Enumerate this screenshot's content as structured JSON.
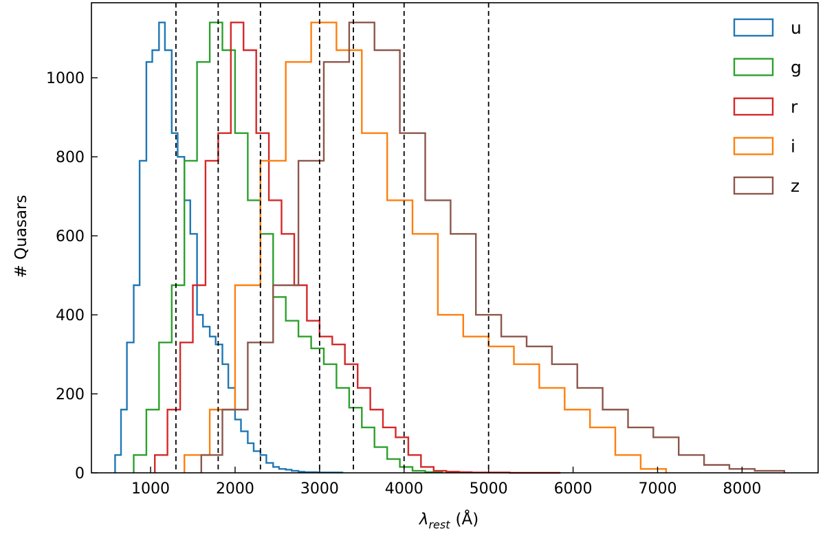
{
  "chart_data": {
    "type": "histogram",
    "xlabel": "λrest (Å)",
    "xlabel_parts": {
      "symbol": "λ",
      "subscript": "rest",
      "unit": "(Å)"
    },
    "ylabel": "# Quasars",
    "xlim": [
      300,
      8900
    ],
    "ylim": [
      0,
      1190
    ],
    "xticks": [
      1000,
      2000,
      3000,
      4000,
      5000,
      6000,
      7000,
      8000
    ],
    "yticks": [
      0,
      200,
      400,
      600,
      800,
      1000
    ],
    "grid": false,
    "legend_position": "top-right",
    "step_style": "stepped outline",
    "reference_lines": {
      "style": "dashed",
      "color": "#000000",
      "x": [
        1300,
        1800,
        2300,
        3000,
        3400,
        4000,
        5000
      ]
    },
    "series": [
      {
        "name": "u",
        "color": "#1f77b4",
        "edges": [
          580,
          650,
          720,
          800,
          870,
          950,
          1020,
          1100,
          1170,
          1250,
          1320,
          1400,
          1470,
          1550,
          1620,
          1700,
          1770,
          1850,
          1920,
          2000,
          2070,
          2150,
          2220,
          2300,
          2370,
          2450,
          2520,
          2600,
          2670,
          2750,
          2820,
          2900,
          2970,
          3050,
          3120,
          3200,
          3270
        ],
        "counts": [
          45,
          160,
          330,
          475,
          790,
          1040,
          1070,
          1140,
          1070,
          860,
          800,
          690,
          605,
          400,
          370,
          345,
          325,
          275,
          215,
          135,
          105,
          75,
          55,
          45,
          25,
          15,
          10,
          8,
          5,
          3,
          2,
          2,
          1,
          1,
          1,
          1
        ]
      },
      {
        "name": "g",
        "color": "#2ca02c",
        "edges": [
          800,
          950,
          1100,
          1250,
          1400,
          1550,
          1700,
          1850,
          2000,
          2150,
          2300,
          2450,
          2600,
          2750,
          2900,
          3050,
          3200,
          3350,
          3500,
          3650,
          3800,
          3950,
          4100,
          4250,
          4450
        ],
        "counts": [
          45,
          160,
          330,
          475,
          790,
          1040,
          1140,
          1070,
          860,
          690,
          605,
          445,
          385,
          345,
          315,
          275,
          215,
          165,
          115,
          65,
          35,
          15,
          5,
          2
        ]
      },
      {
        "name": "r",
        "color": "#d62728",
        "edges": [
          1050,
          1200,
          1350,
          1500,
          1650,
          1800,
          1950,
          2100,
          2250,
          2400,
          2550,
          2700,
          2850,
          3000,
          3150,
          3300,
          3450,
          3600,
          3750,
          3900,
          4050,
          4200,
          4350,
          4500,
          4650,
          4800,
          4950,
          5100,
          5250,
          5400,
          5550,
          5700,
          5850
        ],
        "counts": [
          45,
          160,
          330,
          475,
          790,
          860,
          1140,
          1070,
          860,
          690,
          605,
          475,
          385,
          345,
          325,
          275,
          215,
          160,
          115,
          90,
          45,
          15,
          5,
          3,
          2,
          1,
          1,
          1,
          0,
          0,
          0,
          0
        ]
      },
      {
        "name": "i",
        "color": "#ff7f0e",
        "edges": [
          1400,
          1700,
          2000,
          2300,
          2600,
          2900,
          3200,
          3500,
          3800,
          4100,
          4400,
          4700,
          5000,
          5300,
          5600,
          5900,
          6200,
          6500,
          6800,
          7100
        ],
        "counts": [
          45,
          160,
          475,
          790,
          1040,
          1140,
          1070,
          860,
          690,
          605,
          400,
          345,
          320,
          275,
          215,
          160,
          115,
          45,
          10
        ]
      },
      {
        "name": "z",
        "color": "#8c564b",
        "edges": [
          1600,
          1850,
          2150,
          2450,
          2750,
          3050,
          3350,
          3650,
          3950,
          4250,
          4550,
          4850,
          5150,
          5450,
          5750,
          6050,
          6350,
          6650,
          6950,
          7250,
          7550,
          7850,
          8150,
          8500
        ],
        "counts": [
          45,
          160,
          330,
          475,
          790,
          1040,
          1140,
          1070,
          860,
          690,
          605,
          400,
          345,
          320,
          275,
          215,
          160,
          115,
          90,
          45,
          20,
          10,
          5
        ]
      }
    ]
  }
}
